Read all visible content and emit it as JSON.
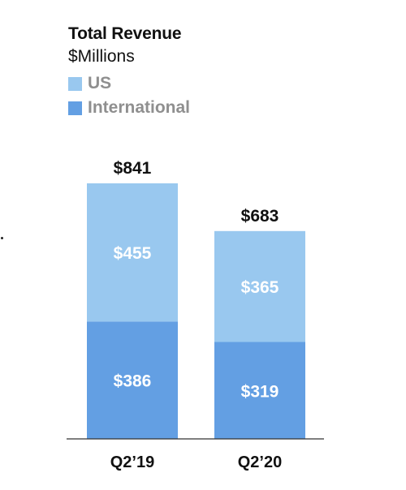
{
  "chart_data": {
    "type": "bar",
    "stacked": true,
    "title": "Total Revenue",
    "subtitle": "$Millions",
    "categories": [
      "Q2’19",
      "Q2’20"
    ],
    "series": [
      {
        "name": "International",
        "values": [
          386,
          319
        ],
        "labels": [
          "$386",
          "$319"
        ],
        "color": "#639fe3"
      },
      {
        "name": "US",
        "values": [
          455,
          365
        ],
        "labels": [
          "$455",
          "$365"
        ],
        "color": "#99c8ef"
      }
    ],
    "totals": [
      841,
      683
    ],
    "total_labels": [
      "$841",
      "$683"
    ],
    "legend": [
      "US",
      "International"
    ],
    "legend_placement": "top-left",
    "grid": false,
    "ylim": [
      0,
      841
    ]
  }
}
